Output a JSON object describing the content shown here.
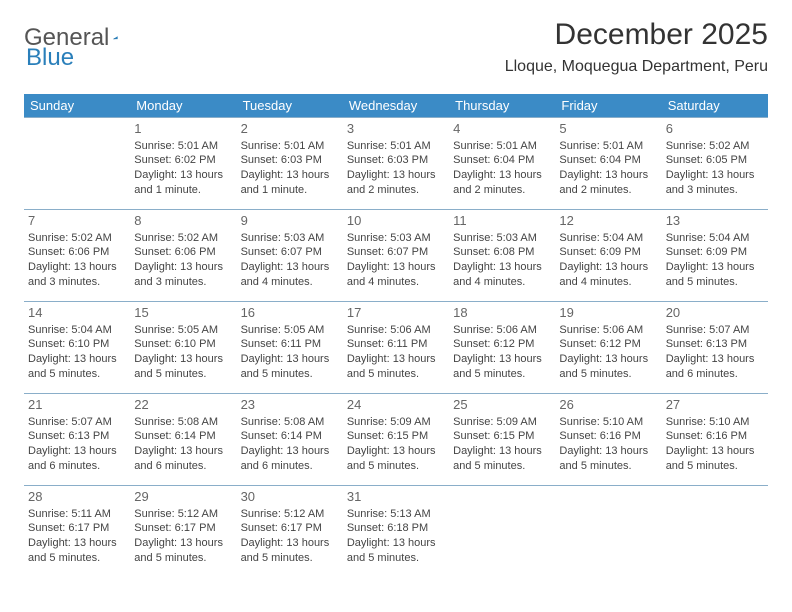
{
  "logo": {
    "general": "General",
    "blue": "Blue"
  },
  "title": "December 2025",
  "location": "Lloque, Moquegua Department, Peru",
  "colors": {
    "header_bg": "#3b8bc6",
    "header_text": "#ffffff",
    "border": "#8aaec9",
    "daynum": "#666666",
    "body_text": "#444444",
    "logo_gray": "#555555",
    "logo_blue": "#2a7fba"
  },
  "layout": {
    "columns": 7,
    "rows": 5,
    "first_weekday_index": 1
  },
  "weekdays": [
    "Sunday",
    "Monday",
    "Tuesday",
    "Wednesday",
    "Thursday",
    "Friday",
    "Saturday"
  ],
  "days": [
    {
      "n": 1,
      "sunrise": "5:01 AM",
      "sunset": "6:02 PM",
      "daylight": "13 hours and 1 minute."
    },
    {
      "n": 2,
      "sunrise": "5:01 AM",
      "sunset": "6:03 PM",
      "daylight": "13 hours and 1 minute."
    },
    {
      "n": 3,
      "sunrise": "5:01 AM",
      "sunset": "6:03 PM",
      "daylight": "13 hours and 2 minutes."
    },
    {
      "n": 4,
      "sunrise": "5:01 AM",
      "sunset": "6:04 PM",
      "daylight": "13 hours and 2 minutes."
    },
    {
      "n": 5,
      "sunrise": "5:01 AM",
      "sunset": "6:04 PM",
      "daylight": "13 hours and 2 minutes."
    },
    {
      "n": 6,
      "sunrise": "5:02 AM",
      "sunset": "6:05 PM",
      "daylight": "13 hours and 3 minutes."
    },
    {
      "n": 7,
      "sunrise": "5:02 AM",
      "sunset": "6:06 PM",
      "daylight": "13 hours and 3 minutes."
    },
    {
      "n": 8,
      "sunrise": "5:02 AM",
      "sunset": "6:06 PM",
      "daylight": "13 hours and 3 minutes."
    },
    {
      "n": 9,
      "sunrise": "5:03 AM",
      "sunset": "6:07 PM",
      "daylight": "13 hours and 4 minutes."
    },
    {
      "n": 10,
      "sunrise": "5:03 AM",
      "sunset": "6:07 PM",
      "daylight": "13 hours and 4 minutes."
    },
    {
      "n": 11,
      "sunrise": "5:03 AM",
      "sunset": "6:08 PM",
      "daylight": "13 hours and 4 minutes."
    },
    {
      "n": 12,
      "sunrise": "5:04 AM",
      "sunset": "6:09 PM",
      "daylight": "13 hours and 4 minutes."
    },
    {
      "n": 13,
      "sunrise": "5:04 AM",
      "sunset": "6:09 PM",
      "daylight": "13 hours and 5 minutes."
    },
    {
      "n": 14,
      "sunrise": "5:04 AM",
      "sunset": "6:10 PM",
      "daylight": "13 hours and 5 minutes."
    },
    {
      "n": 15,
      "sunrise": "5:05 AM",
      "sunset": "6:10 PM",
      "daylight": "13 hours and 5 minutes."
    },
    {
      "n": 16,
      "sunrise": "5:05 AM",
      "sunset": "6:11 PM",
      "daylight": "13 hours and 5 minutes."
    },
    {
      "n": 17,
      "sunrise": "5:06 AM",
      "sunset": "6:11 PM",
      "daylight": "13 hours and 5 minutes."
    },
    {
      "n": 18,
      "sunrise": "5:06 AM",
      "sunset": "6:12 PM",
      "daylight": "13 hours and 5 minutes."
    },
    {
      "n": 19,
      "sunrise": "5:06 AM",
      "sunset": "6:12 PM",
      "daylight": "13 hours and 5 minutes."
    },
    {
      "n": 20,
      "sunrise": "5:07 AM",
      "sunset": "6:13 PM",
      "daylight": "13 hours and 6 minutes."
    },
    {
      "n": 21,
      "sunrise": "5:07 AM",
      "sunset": "6:13 PM",
      "daylight": "13 hours and 6 minutes."
    },
    {
      "n": 22,
      "sunrise": "5:08 AM",
      "sunset": "6:14 PM",
      "daylight": "13 hours and 6 minutes."
    },
    {
      "n": 23,
      "sunrise": "5:08 AM",
      "sunset": "6:14 PM",
      "daylight": "13 hours and 6 minutes."
    },
    {
      "n": 24,
      "sunrise": "5:09 AM",
      "sunset": "6:15 PM",
      "daylight": "13 hours and 5 minutes."
    },
    {
      "n": 25,
      "sunrise": "5:09 AM",
      "sunset": "6:15 PM",
      "daylight": "13 hours and 5 minutes."
    },
    {
      "n": 26,
      "sunrise": "5:10 AM",
      "sunset": "6:16 PM",
      "daylight": "13 hours and 5 minutes."
    },
    {
      "n": 27,
      "sunrise": "5:10 AM",
      "sunset": "6:16 PM",
      "daylight": "13 hours and 5 minutes."
    },
    {
      "n": 28,
      "sunrise": "5:11 AM",
      "sunset": "6:17 PM",
      "daylight": "13 hours and 5 minutes."
    },
    {
      "n": 29,
      "sunrise": "5:12 AM",
      "sunset": "6:17 PM",
      "daylight": "13 hours and 5 minutes."
    },
    {
      "n": 30,
      "sunrise": "5:12 AM",
      "sunset": "6:17 PM",
      "daylight": "13 hours and 5 minutes."
    },
    {
      "n": 31,
      "sunrise": "5:13 AM",
      "sunset": "6:18 PM",
      "daylight": "13 hours and 5 minutes."
    }
  ],
  "labels": {
    "sunrise": "Sunrise:",
    "sunset": "Sunset:",
    "daylight": "Daylight:"
  }
}
